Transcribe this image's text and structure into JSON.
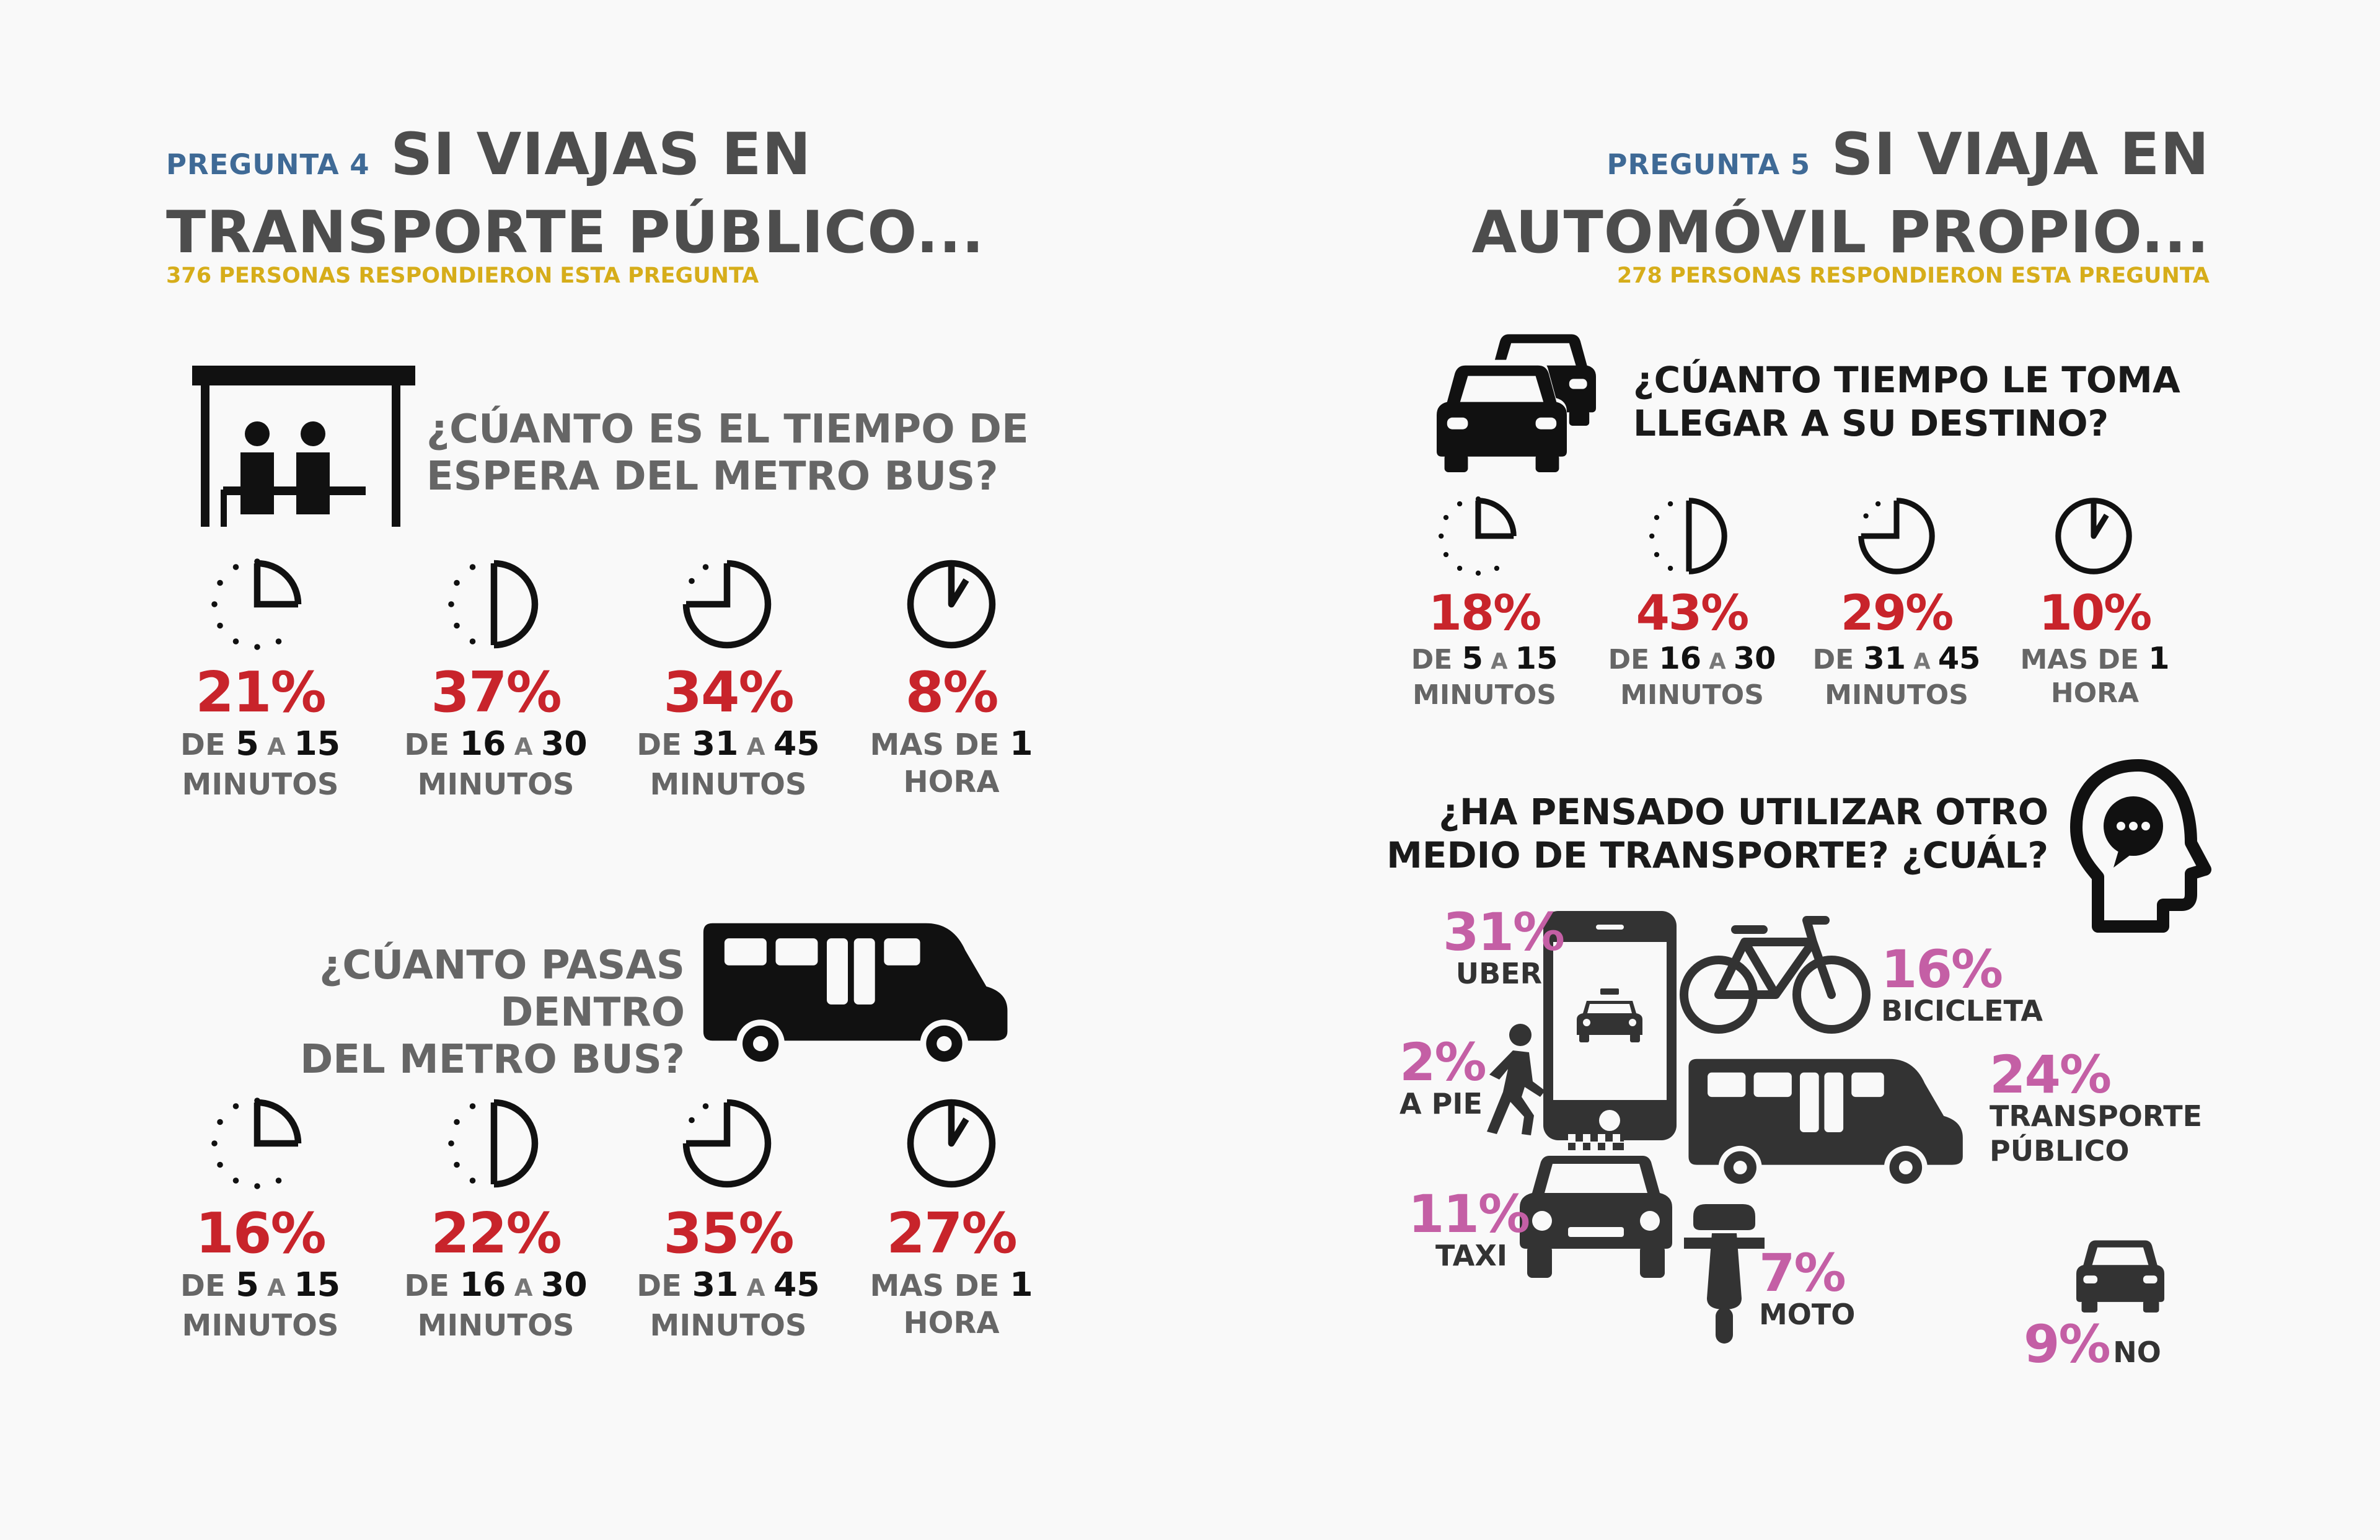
{
  "colors": {
    "question_num": "#3f6a96",
    "subtitle": "#d6ad1a",
    "percent_red": "#c8242b",
    "percent_magenta": "#c45fa5",
    "title": "#4d4d4d"
  },
  "left": {
    "question_num": "PREGUNTA 4",
    "title_line1": "SI VIAJAS EN",
    "title_line2": "TRANSPORTE PÚBLICO...",
    "responded": "376 PERSONAS RESPONDIERON ESTA PREGUNTA",
    "q1": {
      "line1": "¿CÚANTO ES EL TIEMPO DE",
      "line2": "ESPERA DEL METRO BUS?",
      "items": [
        {
          "percent": "21%",
          "p1": "DE ",
          "n1": "5",
          "mid": " A ",
          "n2": "15",
          "line2": "MINUTOS"
        },
        {
          "percent": "37%",
          "p1": "DE ",
          "n1": "16",
          "mid": " A ",
          "n2": "30",
          "line2": "MINUTOS"
        },
        {
          "percent": "34%",
          "p1": "DE ",
          "n1": "31",
          "mid": " A ",
          "n2": "45",
          "line2": "MINUTOS"
        },
        {
          "percent": "8%",
          "p1": "MAS DE ",
          "n1": "1",
          "mid": "",
          "n2": "",
          "line2": "HORA"
        }
      ]
    },
    "q2": {
      "line1": "¿CÚANTO PASAS DENTRO",
      "line2": "DEL METRO BUS?",
      "items": [
        {
          "percent": "16%",
          "p1": "DE ",
          "n1": "5",
          "mid": " A ",
          "n2": "15",
          "line2": "MINUTOS"
        },
        {
          "percent": "22%",
          "p1": "DE ",
          "n1": "16",
          "mid": " A ",
          "n2": "30",
          "line2": "MINUTOS"
        },
        {
          "percent": "35%",
          "p1": "DE ",
          "n1": "31",
          "mid": " A ",
          "n2": "45",
          "line2": "MINUTOS"
        },
        {
          "percent": "27%",
          "p1": "MAS DE ",
          "n1": "1",
          "mid": "",
          "n2": "",
          "line2": "HORA"
        }
      ]
    }
  },
  "right": {
    "question_num": "PREGUNTA 5",
    "title_line1": "SI VIAJA EN",
    "title_line2": "AUTOMÓVIL PROPIO...",
    "responded": "278 PERSONAS RESPONDIERON ESTA PREGUNTA",
    "q1": {
      "line1": "¿CÚANTO TIEMPO LE TOMA",
      "line2": "LLEGAR A SU DESTINO?",
      "items": [
        {
          "percent": "18%",
          "p1": "DE ",
          "n1": "5",
          "mid": " A ",
          "n2": "15",
          "line2": "MINUTOS"
        },
        {
          "percent": "43%",
          "p1": "DE ",
          "n1": "16",
          "mid": " A ",
          "n2": "30",
          "line2": "MINUTOS"
        },
        {
          "percent": "29%",
          "p1": "DE ",
          "n1": "31",
          "mid": " A ",
          "n2": "45",
          "line2": "MINUTOS"
        },
        {
          "percent": "10%",
          "p1": "MAS DE ",
          "n1": "1",
          "mid": "",
          "n2": "",
          "line2": "HORA"
        }
      ]
    },
    "q2": {
      "line1": "¿HA PENSADO UTILIZAR OTRO",
      "line2": "MEDIO DE TRANSPORTE? ¿CUÁL?",
      "options": {
        "uber": {
          "percent": "31%",
          "label": "UBER"
        },
        "bicicleta": {
          "percent": "16%",
          "label": "BICICLETA"
        },
        "a_pie": {
          "percent": "2%",
          "label": "A PIE"
        },
        "transporte": {
          "percent": "24%",
          "label1": "TRANSPORTE",
          "label2": "PÚBLICO"
        },
        "taxi": {
          "percent": "11%",
          "label": "TAXI"
        },
        "moto": {
          "percent": "7%",
          "label": "MOTO"
        },
        "no": {
          "percent": "9%",
          "label": "NO"
        }
      }
    }
  }
}
